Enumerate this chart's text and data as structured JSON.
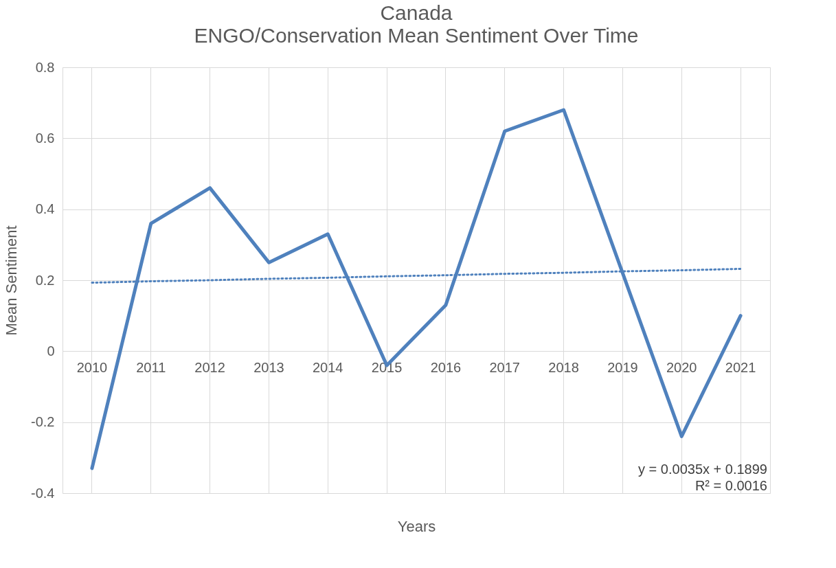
{
  "chart_data": {
    "type": "line",
    "title": "Canada",
    "subtitle": "ENGO/Conservation Mean Sentiment Over Time",
    "xlabel": "Years",
    "ylabel": "Mean Sentiment",
    "categories": [
      "2010",
      "2011",
      "2012",
      "2013",
      "2014",
      "2015",
      "2016",
      "2017",
      "2018",
      "2019",
      "2020",
      "2021"
    ],
    "series": [
      {
        "color": "#4f81bd",
        "values": [
          -0.33,
          0.36,
          0.46,
          0.25,
          0.33,
          -0.04,
          0.13,
          0.62,
          0.68,
          0.22,
          -0.24,
          0.1
        ],
        "line_style": "solid"
      },
      {
        "type": "line",
        "color": "#4f81bd",
        "values": [
          0.193,
          0.197,
          0.2,
          0.204,
          0.207,
          0.211,
          0.214,
          0.218,
          0.221,
          0.225,
          0.228,
          0.232
        ],
        "line_style": "dotted"
      }
    ],
    "ylim": [
      -0.4,
      0.8
    ],
    "yticks": [
      -0.4,
      -0.2,
      0,
      0.2,
      0.4,
      0.6,
      0.8
    ],
    "grid": true,
    "marker": "none",
    "annotations": [
      "y = 0.0035x + 0.1899",
      "R² = 0.0016"
    ]
  }
}
